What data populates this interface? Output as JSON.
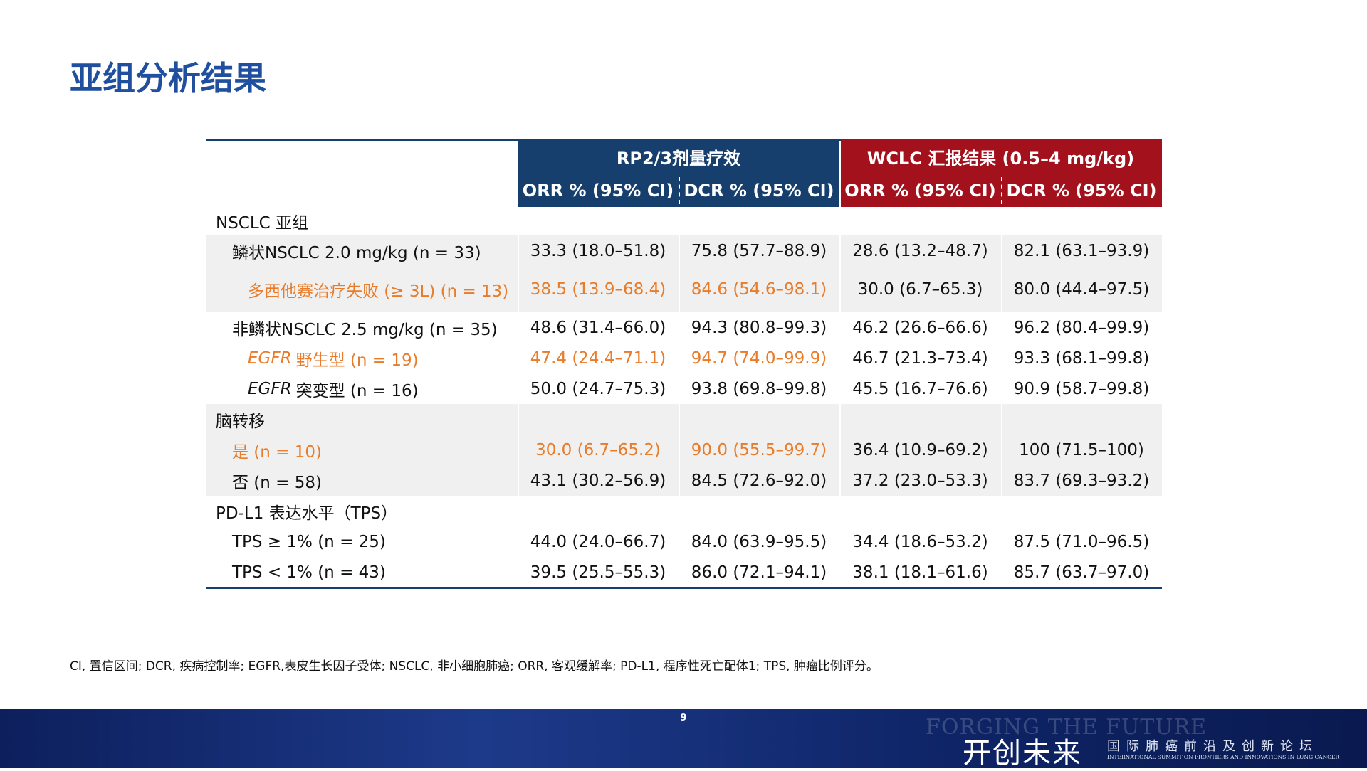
{
  "header": {
    "title": "亚组分析结果"
  },
  "table": {
    "group_headers": [
      "RP2/3剂量疗效",
      "WCLC 汇报结果 (0.5–4 mg/kg)"
    ],
    "group_colors": [
      "#173f6e",
      "#a3111d"
    ],
    "col_headers": [
      "ORR % (95% CI)",
      "DCR % (95% CI)",
      "ORR % (95% CI)",
      "DCR % (95% CI)"
    ],
    "rows": [
      {
        "label": "NSCLC 亚组",
        "indent": 0,
        "shaded": false,
        "cells": []
      },
      {
        "label": "鳞状NSCLC 2.0 mg/kg (n = 33)",
        "indent": 1,
        "shaded": true,
        "cells": [
          "33.3 (18.0–51.8)",
          "75.8 (57.7–88.9)",
          "28.6 (13.2–48.7)",
          "82.1 (63.1–93.9)"
        ]
      },
      {
        "label": "多西他赛治疗失败 (≥ 3L) (n = 13)",
        "indent": 2,
        "shaded": true,
        "color": "#e87c2a",
        "cells": [
          "38.5 (13.9–68.4)",
          "84.6 (54.6–98.1)",
          "30.0 (6.7–65.3)",
          "80.0 (44.4–97.5)"
        ]
      },
      {
        "label": "非鳞状NSCLC 2.5 mg/kg (n = 35)",
        "indent": 1,
        "shaded": false,
        "cells": [
          "48.6 (31.4–66.0)",
          "94.3 (80.8–99.3)",
          "46.2 (26.6–66.6)",
          "96.2 (80.4–99.9)"
        ]
      },
      {
        "prefix": "EGFR",
        "label": "野生型 (n = 19)",
        "indent": 2,
        "shaded": false,
        "color": "#e87c2a",
        "cells": [
          "47.4 (24.4–71.1)",
          "94.7 (74.0–99.9)",
          "46.7 (21.3–73.4)",
          "93.3 (68.1–99.8)"
        ]
      },
      {
        "prefix": "EGFR",
        "label": "突变型 (n = 16)",
        "indent": 2,
        "shaded": false,
        "cells": [
          "50.0 (24.7–75.3)",
          "93.8 (69.8–99.8)",
          "45.5 (16.7–76.6)",
          "90.9 (58.7–99.8)"
        ]
      },
      {
        "label": "脑转移",
        "indent": 0,
        "shaded": true,
        "cells": []
      },
      {
        "label": "是 (n = 10)",
        "indent": 1,
        "shaded": true,
        "color": "#e87c2a",
        "cells": [
          "30.0 (6.7–65.2)",
          "90.0 (55.5–99.7)",
          "36.4 (10.9–69.2)",
          "100 (71.5–100)"
        ]
      },
      {
        "label": "否 (n = 58)",
        "indent": 1,
        "shaded": true,
        "cells": [
          "43.1 (30.2–56.9)",
          "84.5 (72.6–92.0)",
          "37.2 (23.0–53.3)",
          "83.7 (69.3–93.2)"
        ]
      },
      {
        "label": "PD-L1 表达水平（TPS）",
        "indent": 0,
        "shaded": false,
        "cells": []
      },
      {
        "label": "TPS ≥ 1% (n = 25)",
        "indent": 1,
        "shaded": false,
        "cells": [
          "44.0 (24.0–66.7)",
          "84.0 (63.9–95.5)",
          "34.4 (18.6–53.2)",
          "87.5 (71.0–96.5)"
        ]
      },
      {
        "label": "TPS < 1% (n = 43)",
        "indent": 1,
        "shaded": false,
        "cells": [
          "39.5 (25.5–55.3)",
          "86.0 (72.1–94.1)",
          "38.1 (18.1–61.6)",
          "85.7 (63.7–97.0)"
        ]
      }
    ]
  },
  "footnote": "CI, 置信区间; DCR, 疾病控制率; EGFR,表皮生长因子受体; NSCLC, 非小细胞肺癌; ORR, 客观缓解率; PD-L1, 程序性死亡配体1; TPS, 肿瘤比例评分。",
  "page_number": "9",
  "footer": {
    "tagline_en": "FORGING THE FUTURE",
    "tagline_cn": "开创未来",
    "summit_cn": "国际肺癌前沿及创新论坛",
    "summit_en": "INTERNATIONAL SUMMIT ON FRONTIERS AND INNOVATIONS IN LUNG CANCER"
  }
}
